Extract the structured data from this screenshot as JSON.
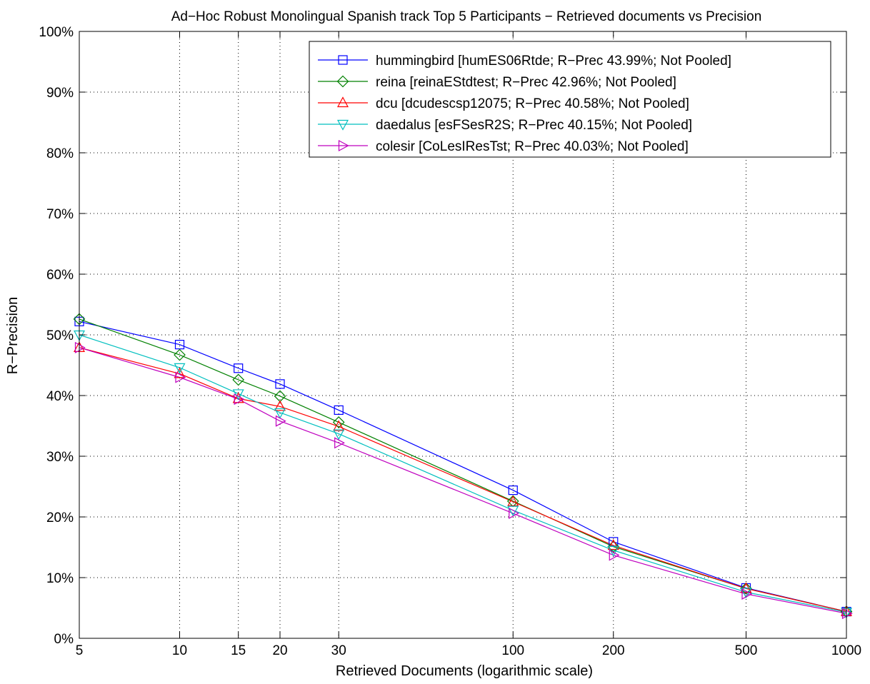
{
  "chart_data": {
    "type": "line",
    "title": "Ad−Hoc Robust Monolingual Spanish track Top 5 Participants − Retrieved documents vs Precision",
    "xlabel": "Retrieved Documents (logarithmic scale)",
    "ylabel": "R−Precision",
    "xscale": "log",
    "xlim": [
      5,
      1000
    ],
    "ylim": [
      0,
      100
    ],
    "grid": true,
    "legend_position": "top-right",
    "x": [
      5,
      10,
      15,
      20,
      30,
      100,
      200,
      500,
      1000
    ],
    "x_tick_labels": [
      "5",
      "10",
      "15",
      "20",
      "30",
      "100",
      "200",
      "500",
      "1000"
    ],
    "y_ticks": [
      0,
      10,
      20,
      30,
      40,
      50,
      60,
      70,
      80,
      90,
      100
    ],
    "y_tick_labels": [
      "0%",
      "10%",
      "20%",
      "30%",
      "40%",
      "50%",
      "60%",
      "70%",
      "80%",
      "90%",
      "100%"
    ],
    "series": [
      {
        "name": "hummingbird [humES06Rtde; R−Prec 43.99%; Not Pooled]",
        "color": "#0000ff",
        "marker": "square",
        "values": [
          52.2,
          48.4,
          44.5,
          41.9,
          37.6,
          24.4,
          15.9,
          8.3,
          4.4
        ]
      },
      {
        "name": "reina [reinaEStdtest; R−Prec 42.96%; Not Pooled]",
        "color": "#008000",
        "marker": "diamond",
        "values": [
          52.6,
          46.7,
          42.6,
          39.9,
          35.6,
          22.6,
          15.1,
          8.2,
          4.4
        ]
      },
      {
        "name": "dcu [dcudescsp12075; R−Prec 40.58%; Not Pooled]",
        "color": "#ff0000",
        "marker": "triangle-up",
        "values": [
          47.9,
          43.6,
          39.5,
          38.2,
          34.9,
          22.5,
          15.3,
          8.2,
          4.4
        ]
      },
      {
        "name": "daedalus [esFSesR2S; R−Prec 40.15%; Not Pooled]",
        "color": "#00bfbf",
        "marker": "triangle-down",
        "values": [
          50.0,
          44.6,
          40.3,
          37.2,
          33.7,
          21.1,
          14.5,
          7.6,
          4.3
        ]
      },
      {
        "name": "colesir [CoLesIResTst; R−Prec 40.03%; Not Pooled]",
        "color": "#bf00bf",
        "marker": "triangle-right",
        "values": [
          47.9,
          43.0,
          39.4,
          35.8,
          32.2,
          20.6,
          13.7,
          7.3,
          4.1
        ]
      }
    ]
  }
}
